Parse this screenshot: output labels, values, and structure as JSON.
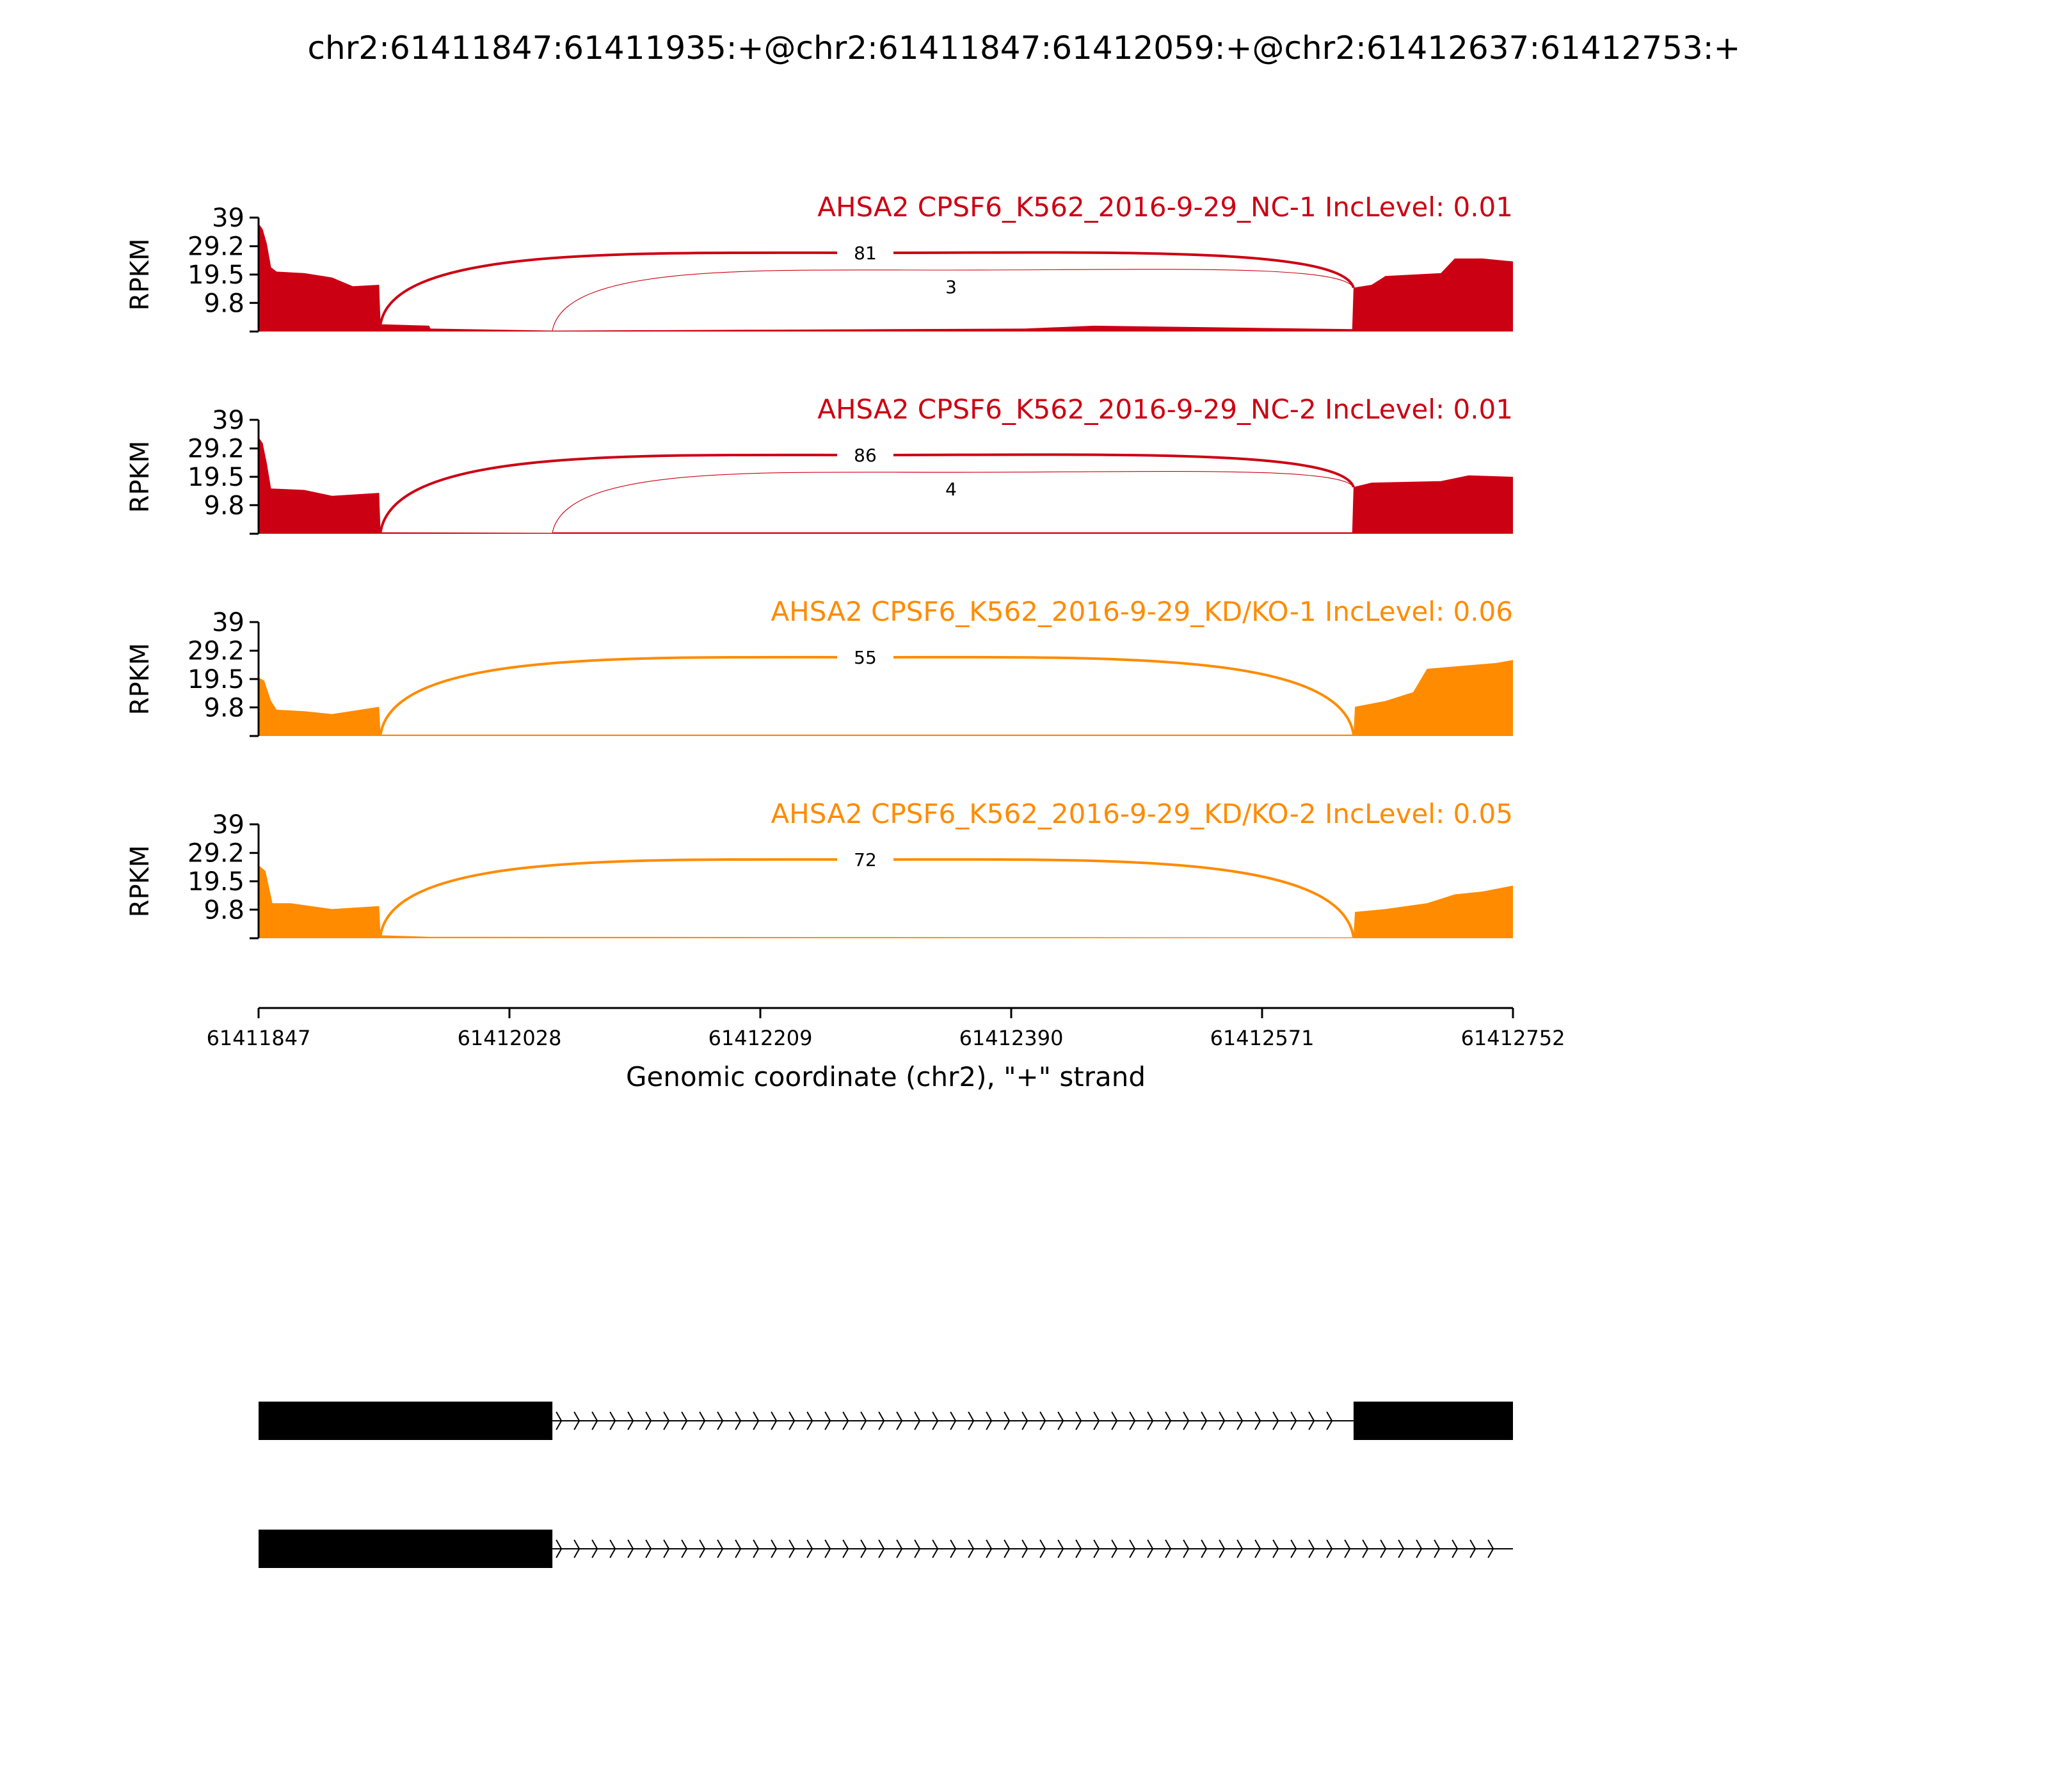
{
  "figure": {
    "title": "chr2:61411847:61411935:+@chr2:61411847:61412059:+@chr2:61412637:61412753:+"
  },
  "chart_data": {
    "type": "area",
    "subtype": "sashimi",
    "x_range": [
      61411847,
      61412752
    ],
    "x_ticks": [
      "61411847",
      "61412028",
      "61412209",
      "61412390",
      "61412571",
      "61412752"
    ],
    "xlabel": "Genomic coordinate (chr2), \"+\" strand",
    "ylabel": "RPKM",
    "ylim": [
      0,
      39
    ],
    "y_ticks": [
      "39",
      "29.2",
      "19.5",
      "9.8"
    ],
    "grid": false,
    "tracks": [
      {
        "label": "AHSA2 CPSF6_K562_2016-9-29_NC-1 IncLevel: 0.01",
        "color": "#cc0013",
        "coverage": [
          {
            "x": 61411847,
            "y": 37
          },
          {
            "x": 61411850,
            "y": 35
          },
          {
            "x": 61411853,
            "y": 30
          },
          {
            "x": 61411856,
            "y": 22
          },
          {
            "x": 61411860,
            "y": 20.5
          },
          {
            "x": 61411880,
            "y": 20
          },
          {
            "x": 61411900,
            "y": 18.5
          },
          {
            "x": 61411915,
            "y": 15.5
          },
          {
            "x": 61411934,
            "y": 16
          },
          {
            "x": 61411935,
            "y": 2.5
          },
          {
            "x": 61411970,
            "y": 2
          },
          {
            "x": 61411971,
            "y": 1
          },
          {
            "x": 61412059,
            "y": 0.3
          },
          {
            "x": 61412400,
            "y": 1
          },
          {
            "x": 61412450,
            "y": 2
          },
          {
            "x": 61412636,
            "y": 0.8
          },
          {
            "x": 61412637,
            "y": 15
          },
          {
            "x": 61412650,
            "y": 16
          },
          {
            "x": 61412660,
            "y": 19
          },
          {
            "x": 61412700,
            "y": 20
          },
          {
            "x": 61412710,
            "y": 25
          },
          {
            "x": 61412730,
            "y": 25
          },
          {
            "x": 61412752,
            "y": 24
          }
        ],
        "junctions": [
          {
            "start": 61411935,
            "end": 61412637,
            "count": "81"
          },
          {
            "start": 61412059,
            "end": 61412637,
            "count": "3"
          }
        ]
      },
      {
        "label": "AHSA2 CPSF6_K562_2016-9-29_NC-2 IncLevel: 0.01",
        "color": "#cc0013",
        "coverage": [
          {
            "x": 61411847,
            "y": 33
          },
          {
            "x": 61411850,
            "y": 31
          },
          {
            "x": 61411853,
            "y": 24
          },
          {
            "x": 61411856,
            "y": 15.5
          },
          {
            "x": 61411880,
            "y": 15
          },
          {
            "x": 61411900,
            "y": 13
          },
          {
            "x": 61411934,
            "y": 14
          },
          {
            "x": 61411935,
            "y": 0.5
          },
          {
            "x": 61412059,
            "y": 0.3
          },
          {
            "x": 61412060,
            "y": 0.5
          },
          {
            "x": 61412636,
            "y": 0.5
          },
          {
            "x": 61412637,
            "y": 16
          },
          {
            "x": 61412650,
            "y": 17.5
          },
          {
            "x": 61412700,
            "y": 18
          },
          {
            "x": 61412720,
            "y": 20
          },
          {
            "x": 61412752,
            "y": 19.5
          }
        ],
        "junctions": [
          {
            "start": 61411935,
            "end": 61412637,
            "count": "86"
          },
          {
            "start": 61412059,
            "end": 61412637,
            "count": "4"
          }
        ]
      },
      {
        "label": "AHSA2 CPSF6_K562_2016-9-29_KD/KO-1 IncLevel: 0.06",
        "color": "#ff8b00",
        "coverage": [
          {
            "x": 61411847,
            "y": 20
          },
          {
            "x": 61411851,
            "y": 19
          },
          {
            "x": 61411856,
            "y": 12
          },
          {
            "x": 61411860,
            "y": 9
          },
          {
            "x": 61411880,
            "y": 8.5
          },
          {
            "x": 61411900,
            "y": 7.5
          },
          {
            "x": 61411934,
            "y": 10
          },
          {
            "x": 61411935,
            "y": 0.5
          },
          {
            "x": 61412637,
            "y": 0.5
          },
          {
            "x": 61412638,
            "y": 10
          },
          {
            "x": 61412660,
            "y": 12
          },
          {
            "x": 61412680,
            "y": 15
          },
          {
            "x": 61412690,
            "y": 23
          },
          {
            "x": 61412740,
            "y": 25
          },
          {
            "x": 61412752,
            "y": 26
          }
        ],
        "junctions": [
          {
            "start": 61411935,
            "end": 61412637,
            "count": "55"
          }
        ]
      },
      {
        "label": "AHSA2 CPSF6_K562_2016-9-29_KD/KO-2 IncLevel: 0.05",
        "color": "#ff8b00",
        "coverage": [
          {
            "x": 61411847,
            "y": 25
          },
          {
            "x": 61411852,
            "y": 23
          },
          {
            "x": 61411857,
            "y": 12
          },
          {
            "x": 61411870,
            "y": 12
          },
          {
            "x": 61411900,
            "y": 10
          },
          {
            "x": 61411934,
            "y": 11
          },
          {
            "x": 61411935,
            "y": 1
          },
          {
            "x": 61411970,
            "y": 0.5
          },
          {
            "x": 61412637,
            "y": 0.3
          },
          {
            "x": 61412638,
            "y": 9
          },
          {
            "x": 61412660,
            "y": 10
          },
          {
            "x": 61412690,
            "y": 12
          },
          {
            "x": 61412710,
            "y": 15
          },
          {
            "x": 61412730,
            "y": 16
          },
          {
            "x": 61412752,
            "y": 18
          }
        ],
        "junctions": [
          {
            "start": 61411935,
            "end": 61412637,
            "count": "72"
          }
        ]
      }
    ],
    "isoforms": [
      {
        "exons": [
          [
            61411847,
            61412059
          ],
          [
            61412637,
            61412752
          ]
        ],
        "intron": [
          61412059,
          61412637
        ]
      },
      {
        "exons": [
          [
            61411847,
            61412059
          ]
        ],
        "intron": [
          61412059,
          61412752
        ]
      }
    ]
  }
}
